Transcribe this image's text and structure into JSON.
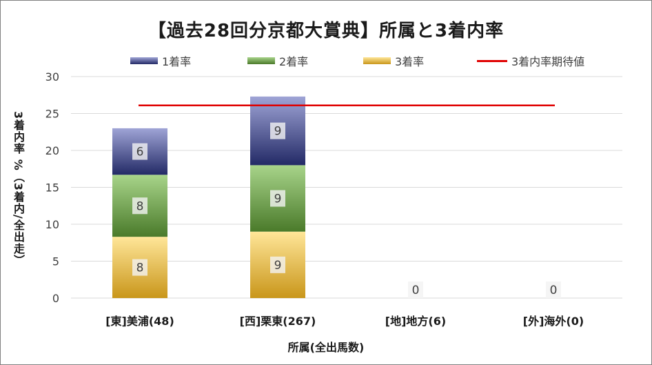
{
  "chart_data": {
    "type": "bar",
    "stacked": true,
    "title": "【過去28回分京都大賞典】所属と3着内率",
    "xlabel": "所属(全出馬数)",
    "ylabel": "3着内率 %（3着内/全出走）",
    "categories": [
      "[東]美浦(48)",
      "[西]栗東(267)",
      "[地]地方(6)",
      "[外]海外(0)"
    ],
    "series": [
      {
        "name": "3着率",
        "values": [
          8.3,
          9.0,
          0,
          0
        ],
        "labels": [
          "8",
          "9",
          "0",
          "0"
        ],
        "color": "#d9a935"
      },
      {
        "name": "2着率",
        "values": [
          8.4,
          9.0,
          0,
          0
        ],
        "labels": [
          "8",
          "9",
          "",
          ""
        ],
        "color": "#70a148"
      },
      {
        "name": "1着率",
        "values": [
          6.3,
          9.3,
          0,
          0
        ],
        "labels": [
          "6",
          "9",
          "",
          ""
        ],
        "color": "#4d55a0"
      }
    ],
    "reference_line": {
      "name": "3着内率期待値",
      "value": 26.1,
      "color": "#e00000"
    },
    "ylim": [
      0,
      30
    ],
    "yticks": [
      0,
      5,
      10,
      15,
      20,
      25,
      30
    ],
    "grid": true,
    "legend_position": "top"
  },
  "legend": [
    {
      "label": "1着率",
      "color_top": "#9fa4d6",
      "color_bottom": "#232a66"
    },
    {
      "label": "2着率",
      "color_top": "#a8d48a",
      "color_bottom": "#4a7a2a"
    },
    {
      "label": "3着率",
      "color_top": "#ffe699",
      "color_bottom": "#c9961a"
    },
    {
      "label": "3着内率期待値",
      "color": "#e00000"
    }
  ]
}
